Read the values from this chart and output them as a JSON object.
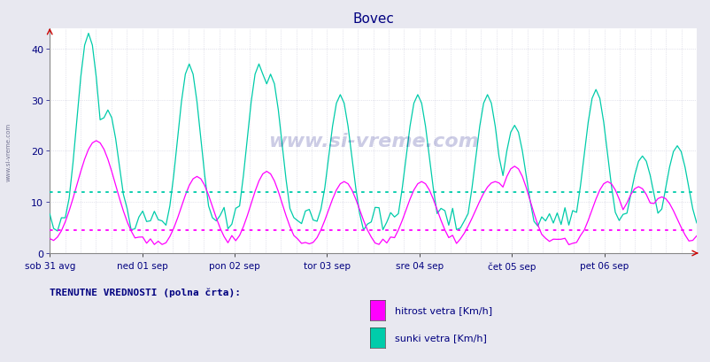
{
  "title": "Bovec",
  "title_color": "#000080",
  "bg_color": "#e8e8f0",
  "plot_bg_color": "#ffffff",
  "grid_color_h": "#ccccdd",
  "grid_color_v": "#ccccdd",
  "line1_color": "#ff00ff",
  "line2_color": "#00ccaa",
  "hline1_value": 4.5,
  "hline2_value": 12.0,
  "hline1_color": "#ff00ff",
  "hline2_color": "#00ccaa",
  "ylim": [
    0,
    44
  ],
  "yticks": [
    0,
    10,
    20,
    30,
    40
  ],
  "tick_color": "#000080",
  "xtick_labels": [
    "sob 31 avg",
    "ned 01 sep",
    "pon 02 sep",
    "tor 03 sep",
    "sre 04 sep",
    "čet 05 sep",
    "pet 06 sep"
  ],
  "ylabel1": "hitrost vetra [Km/h]",
  "ylabel2": "sunki vetra [Km/h]",
  "bottom_label": "TRENUTNE VREDNOSTI (polna črta):",
  "watermark": "www.si-vreme.com",
  "left_label": "www.si-vreme.com",
  "n_points": 168
}
